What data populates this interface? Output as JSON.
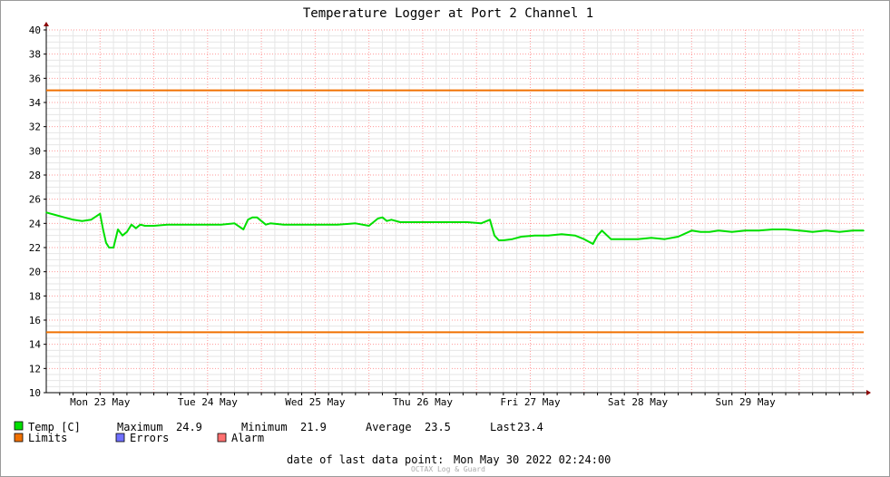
{
  "chart_data": {
    "type": "line",
    "title": "Temperature Logger at Port 2 Channel 1",
    "ylim": [
      10,
      40
    ],
    "y_ticks": [
      "10",
      "12",
      "14",
      "16",
      "18",
      "20",
      "22",
      "24",
      "26",
      "28",
      "30",
      "32",
      "34",
      "36",
      "38",
      "40"
    ],
    "x_ticks": [
      "Mon 23 May",
      "Tue 24 May",
      "Wed 25 May",
      "Thu 26 May",
      "Fri 27 May",
      "Sat 28 May",
      "Sun 29 May"
    ],
    "xlim": [
      "2022-05-22T12:00",
      "2022-05-30T02:24"
    ],
    "grid": true,
    "series": [
      {
        "name": "Temp [C]",
        "color": "#00e000",
        "x": [
          "2022-05-22T12:00",
          "2022-05-22T14:00",
          "2022-05-22T16:00",
          "2022-05-22T18:00",
          "2022-05-22T20:00",
          "2022-05-22T22:00",
          "2022-05-23T00:00",
          "2022-05-23T00:40",
          "2022-05-23T01:20",
          "2022-05-23T02:00",
          "2022-05-23T03:00",
          "2022-05-23T04:00",
          "2022-05-23T05:00",
          "2022-05-23T06:00",
          "2022-05-23T07:00",
          "2022-05-23T08:00",
          "2022-05-23T09:00",
          "2022-05-23T10:00",
          "2022-05-23T12:00",
          "2022-05-23T15:00",
          "2022-05-23T18:00",
          "2022-05-23T21:00",
          "2022-05-24T00:00",
          "2022-05-24T03:00",
          "2022-05-24T06:00",
          "2022-05-24T08:00",
          "2022-05-24T09:00",
          "2022-05-24T10:00",
          "2022-05-24T11:00",
          "2022-05-24T12:00",
          "2022-05-24T13:00",
          "2022-05-24T14:00",
          "2022-05-24T17:00",
          "2022-05-24T21:00",
          "2022-05-25T01:00",
          "2022-05-25T05:00",
          "2022-05-25T09:00",
          "2022-05-25T12:00",
          "2022-05-25T14:00",
          "2022-05-25T15:00",
          "2022-05-25T16:00",
          "2022-05-25T17:00",
          "2022-05-25T19:00",
          "2022-05-25T22:00",
          "2022-05-26T01:00",
          "2022-05-26T04:00",
          "2022-05-26T07:00",
          "2022-05-26T10:00",
          "2022-05-26T13:00",
          "2022-05-26T15:00",
          "2022-05-26T16:00",
          "2022-05-26T17:00",
          "2022-05-26T18:00",
          "2022-05-26T20:00",
          "2022-05-26T22:00",
          "2022-05-27T01:00",
          "2022-05-27T04:00",
          "2022-05-27T07:00",
          "2022-05-27T10:00",
          "2022-05-27T12:00",
          "2022-05-27T14:00",
          "2022-05-27T15:00",
          "2022-05-27T16:00",
          "2022-05-27T18:00",
          "2022-05-27T20:00",
          "2022-05-27T22:00",
          "2022-05-28T00:00",
          "2022-05-28T03:00",
          "2022-05-28T06:00",
          "2022-05-28T09:00",
          "2022-05-28T12:00",
          "2022-05-28T14:00",
          "2022-05-28T16:00",
          "2022-05-28T18:00",
          "2022-05-28T21:00",
          "2022-05-29T00:00",
          "2022-05-29T03:00",
          "2022-05-29T06:00",
          "2022-05-29T09:00",
          "2022-05-29T12:00",
          "2022-05-29T15:00",
          "2022-05-29T18:00",
          "2022-05-29T21:00",
          "2022-05-30T00:00",
          "2022-05-30T02:24"
        ],
        "values": [
          24.9,
          24.7,
          24.5,
          24.3,
          24.2,
          24.3,
          24.8,
          23.5,
          22.4,
          22.0,
          22.0,
          23.5,
          23.0,
          23.3,
          23.9,
          23.6,
          23.9,
          23.8,
          23.8,
          23.9,
          23.9,
          23.9,
          23.9,
          23.9,
          24.0,
          23.5,
          24.3,
          24.5,
          24.5,
          24.2,
          23.9,
          24.0,
          23.9,
          23.9,
          23.9,
          23.9,
          24.0,
          23.8,
          24.4,
          24.5,
          24.2,
          24.3,
          24.1,
          24.1,
          24.1,
          24.1,
          24.1,
          24.1,
          24.0,
          24.3,
          23.0,
          22.6,
          22.6,
          22.7,
          22.9,
          23.0,
          23.0,
          23.1,
          23.0,
          22.7,
          22.3,
          23.0,
          23.4,
          22.7,
          22.7,
          22.7,
          22.7,
          22.8,
          22.7,
          22.9,
          23.4,
          23.3,
          23.3,
          23.4,
          23.3,
          23.4,
          23.4,
          23.5,
          23.5,
          23.4,
          23.3,
          23.4,
          23.3,
          23.4,
          23.4
        ]
      },
      {
        "name": "Limits",
        "color": "#f07000",
        "values": [
          35,
          15
        ]
      }
    ]
  },
  "legend": {
    "temp_label": "Temp [C]",
    "temp_color": "#00e000",
    "limits_label": "Limits",
    "limits_color": "#f07000",
    "errors_label": "Errors",
    "errors_color": "#7070ff",
    "alarm_label": "Alarm",
    "alarm_color": "#ff7070",
    "max_label": "Maximum",
    "max_value": "24.9",
    "min_label": "Minimum",
    "min_value": "21.9",
    "avg_label": "Average",
    "avg_value": "23.5",
    "last_label": "Last",
    "last_value": "23.4"
  },
  "footer": {
    "date_label": "date of last data point:",
    "date_value": "Mon May 30 2022 02:24:00",
    "watermark": "OCTAX Log & Guard"
  }
}
